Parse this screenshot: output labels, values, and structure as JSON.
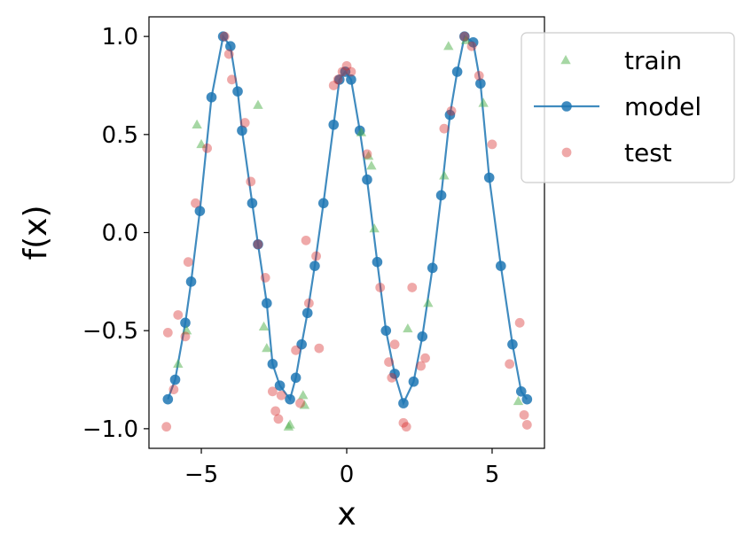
{
  "chart_data": {
    "type": "line",
    "xlabel": "x",
    "ylabel": "f(x)",
    "xlim": [
      -6.8,
      6.8
    ],
    "ylim": [
      -1.1,
      1.1
    ],
    "x_ticks": [
      -5,
      0,
      5
    ],
    "x_tick_labels": [
      "−5",
      "0",
      "5"
    ],
    "y_ticks": [
      1.0,
      0.5,
      0.0,
      -0.5,
      -1.0
    ],
    "y_tick_labels": [
      "1.0",
      "0.5",
      "0.0",
      "−0.5",
      "−1.0"
    ],
    "grid": false,
    "legend_position": "outside-top-right",
    "colors": {
      "train": "#4daf4a",
      "model": "#1f77b4",
      "test": "#d62728"
    },
    "series": [
      {
        "name": "train",
        "marker": "triangle",
        "x": [
          -5.15,
          -5.0,
          -5.5,
          -5.8,
          -3.05,
          -2.85,
          -2.75,
          -2.0,
          -1.95,
          -1.45,
          -1.5,
          0.5,
          0.75,
          0.85,
          0.95,
          2.1,
          2.8,
          3.35,
          3.5,
          4.1,
          4.7,
          5.9
        ],
        "y": [
          0.55,
          0.45,
          -0.5,
          -0.67,
          0.65,
          -0.48,
          -0.59,
          -0.99,
          -0.98,
          -0.88,
          -0.83,
          0.51,
          0.39,
          0.34,
          0.02,
          -0.49,
          -0.36,
          0.29,
          0.95,
          0.98,
          0.66,
          -0.86
        ]
      },
      {
        "name": "model",
        "marker": "circle",
        "x": [
          -6.15,
          -5.9,
          -5.55,
          -5.35,
          -5.05,
          -4.65,
          -4.25,
          -4.0,
          -3.75,
          -3.6,
          -3.25,
          -3.05,
          -2.75,
          -2.55,
          -2.3,
          -1.95,
          -1.75,
          -1.55,
          -1.35,
          -1.1,
          -0.8,
          -0.45,
          -0.25,
          -0.05,
          0.15,
          0.45,
          0.7,
          1.05,
          1.35,
          1.65,
          1.95,
          2.3,
          2.6,
          2.95,
          3.25,
          3.55,
          3.8,
          4.05,
          4.35,
          4.6,
          4.9,
          5.3,
          5.7,
          6.0,
          6.2
        ],
        "y": [
          -0.85,
          -0.75,
          -0.46,
          -0.25,
          0.11,
          0.69,
          1.0,
          0.95,
          0.72,
          0.52,
          0.15,
          -0.06,
          -0.36,
          -0.67,
          -0.78,
          -0.85,
          -0.74,
          -0.57,
          -0.41,
          -0.17,
          0.15,
          0.55,
          0.78,
          0.82,
          0.78,
          0.52,
          0.27,
          -0.15,
          -0.5,
          -0.72,
          -0.87,
          -0.76,
          -0.53,
          -0.18,
          0.19,
          0.6,
          0.82,
          1.0,
          0.97,
          0.76,
          0.28,
          -0.17,
          -0.57,
          -0.81,
          -0.85
        ]
      },
      {
        "name": "test",
        "marker": "circle",
        "x": [
          -6.2,
          -6.15,
          -5.95,
          -5.8,
          -5.55,
          -5.45,
          -5.2,
          -4.8,
          -4.2,
          -4.05,
          -3.95,
          -3.5,
          -3.3,
          -3.05,
          -2.8,
          -2.55,
          -2.45,
          -2.35,
          -2.25,
          -1.75,
          -1.6,
          -1.4,
          -1.3,
          -1.05,
          -0.95,
          -0.45,
          -0.3,
          -0.15,
          0.0,
          0.15,
          0.7,
          1.15,
          1.45,
          1.55,
          1.65,
          1.95,
          2.05,
          2.25,
          2.55,
          2.7,
          3.35,
          3.6,
          4.05,
          4.3,
          4.55,
          5.0,
          5.6,
          5.95,
          6.1,
          6.2
        ],
        "y": [
          -0.99,
          -0.51,
          -0.8,
          -0.42,
          -0.53,
          -0.15,
          0.15,
          0.43,
          1.0,
          0.91,
          0.78,
          0.56,
          0.26,
          -0.06,
          -0.23,
          -0.81,
          -0.91,
          -0.95,
          -0.83,
          -0.6,
          -0.87,
          -0.04,
          -0.36,
          -0.12,
          -0.59,
          0.75,
          0.78,
          0.82,
          0.85,
          0.82,
          0.4,
          -0.28,
          -0.66,
          -0.74,
          -0.57,
          -0.97,
          -0.99,
          -0.28,
          -0.68,
          -0.64,
          0.53,
          0.62,
          1.0,
          0.95,
          0.8,
          0.45,
          -0.67,
          -0.46,
          -0.93,
          -0.98
        ]
      }
    ]
  }
}
